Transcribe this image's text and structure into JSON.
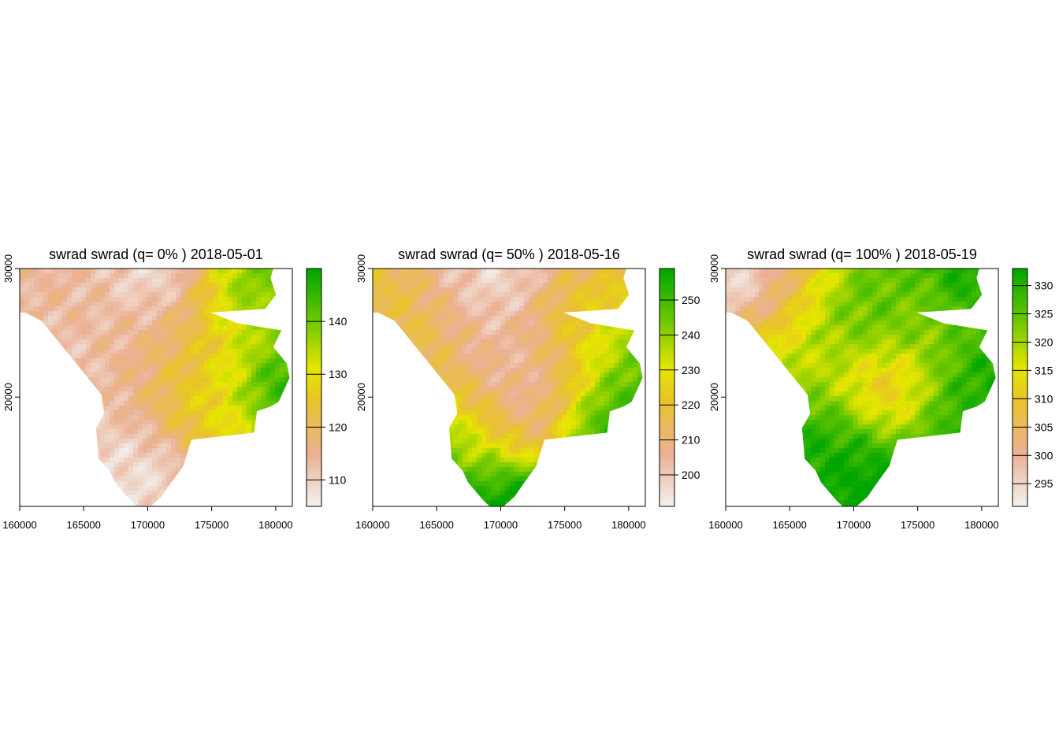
{
  "chart_data": [
    {
      "type": "heatmap",
      "title": "swrad swrad (q= 0% ) 2018-05-01",
      "x_ticks": [
        160000,
        165000,
        170000,
        175000,
        180000
      ],
      "y_ticks": [
        20000,
        30000
      ],
      "xlim": [
        160000,
        181300
      ],
      "ylim": [
        11500,
        30000
      ],
      "colorbar": {
        "ticks": [
          110,
          120,
          130,
          140
        ],
        "min": 105,
        "max": 150
      },
      "value_range": [
        105,
        150
      ]
    },
    {
      "type": "heatmap",
      "title": "swrad swrad (q= 50% ) 2018-05-16",
      "x_ticks": [
        160000,
        165000,
        170000,
        175000,
        180000
      ],
      "y_ticks": [
        20000,
        30000
      ],
      "xlim": [
        160000,
        181300
      ],
      "ylim": [
        11500,
        30000
      ],
      "colorbar": {
        "ticks": [
          200,
          210,
          220,
          230,
          240,
          250
        ],
        "min": 191,
        "max": 259
      },
      "value_range": [
        191,
        259
      ]
    },
    {
      "type": "heatmap",
      "title": "swrad swrad (q= 100% ) 2018-05-19",
      "x_ticks": [
        160000,
        165000,
        170000,
        175000,
        180000
      ],
      "y_ticks": [
        20000,
        30000
      ],
      "xlim": [
        160000,
        181300
      ],
      "ylim": [
        11500,
        30000
      ],
      "colorbar": {
        "ticks": [
          295,
          300,
          305,
          310,
          315,
          320,
          325,
          330
        ],
        "min": 291,
        "max": 333
      },
      "value_range": [
        291,
        333
      ]
    }
  ],
  "colors": {
    "palette_low": "#f2f2f2",
    "palette_mid_low": "#ebb08f",
    "palette_mid": "#e6e600",
    "palette_high": "#00a600"
  }
}
